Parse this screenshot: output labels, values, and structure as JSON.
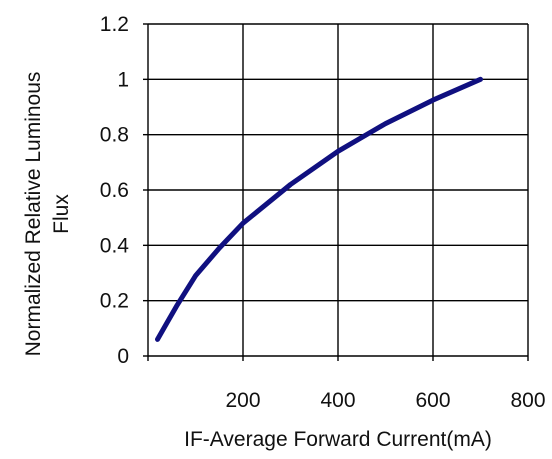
{
  "chart_data": {
    "type": "line",
    "xlabel": "IF-Average Forward Current(mA)",
    "ylabel_lines": [
      "Normalized Relative Luminous",
      "Flux"
    ],
    "xlim": [
      0,
      800
    ],
    "ylim": [
      0,
      1.2
    ],
    "x_ticks": [
      0,
      200,
      400,
      600,
      800
    ],
    "y_ticks": [
      0,
      0.2,
      0.4,
      0.6,
      0.8,
      1,
      1.2
    ],
    "x_tick_labels": [
      "200",
      "400",
      "600",
      "800"
    ],
    "y_tick_labels": [
      "0",
      "0.2",
      "0.4",
      "0.6",
      "0.8",
      "1",
      "1.2"
    ],
    "grid": true,
    "series": [
      {
        "x": [
          20,
          40,
          60,
          100,
          150,
          200,
          300,
          400,
          500,
          600,
          700
        ],
        "y": [
          0.06,
          0.12,
          0.18,
          0.29,
          0.39,
          0.48,
          0.62,
          0.74,
          0.84,
          0.925,
          1.0
        ]
      }
    ],
    "colors": {
      "line": "#101080",
      "grid": "#000000",
      "text": "#111111"
    }
  }
}
